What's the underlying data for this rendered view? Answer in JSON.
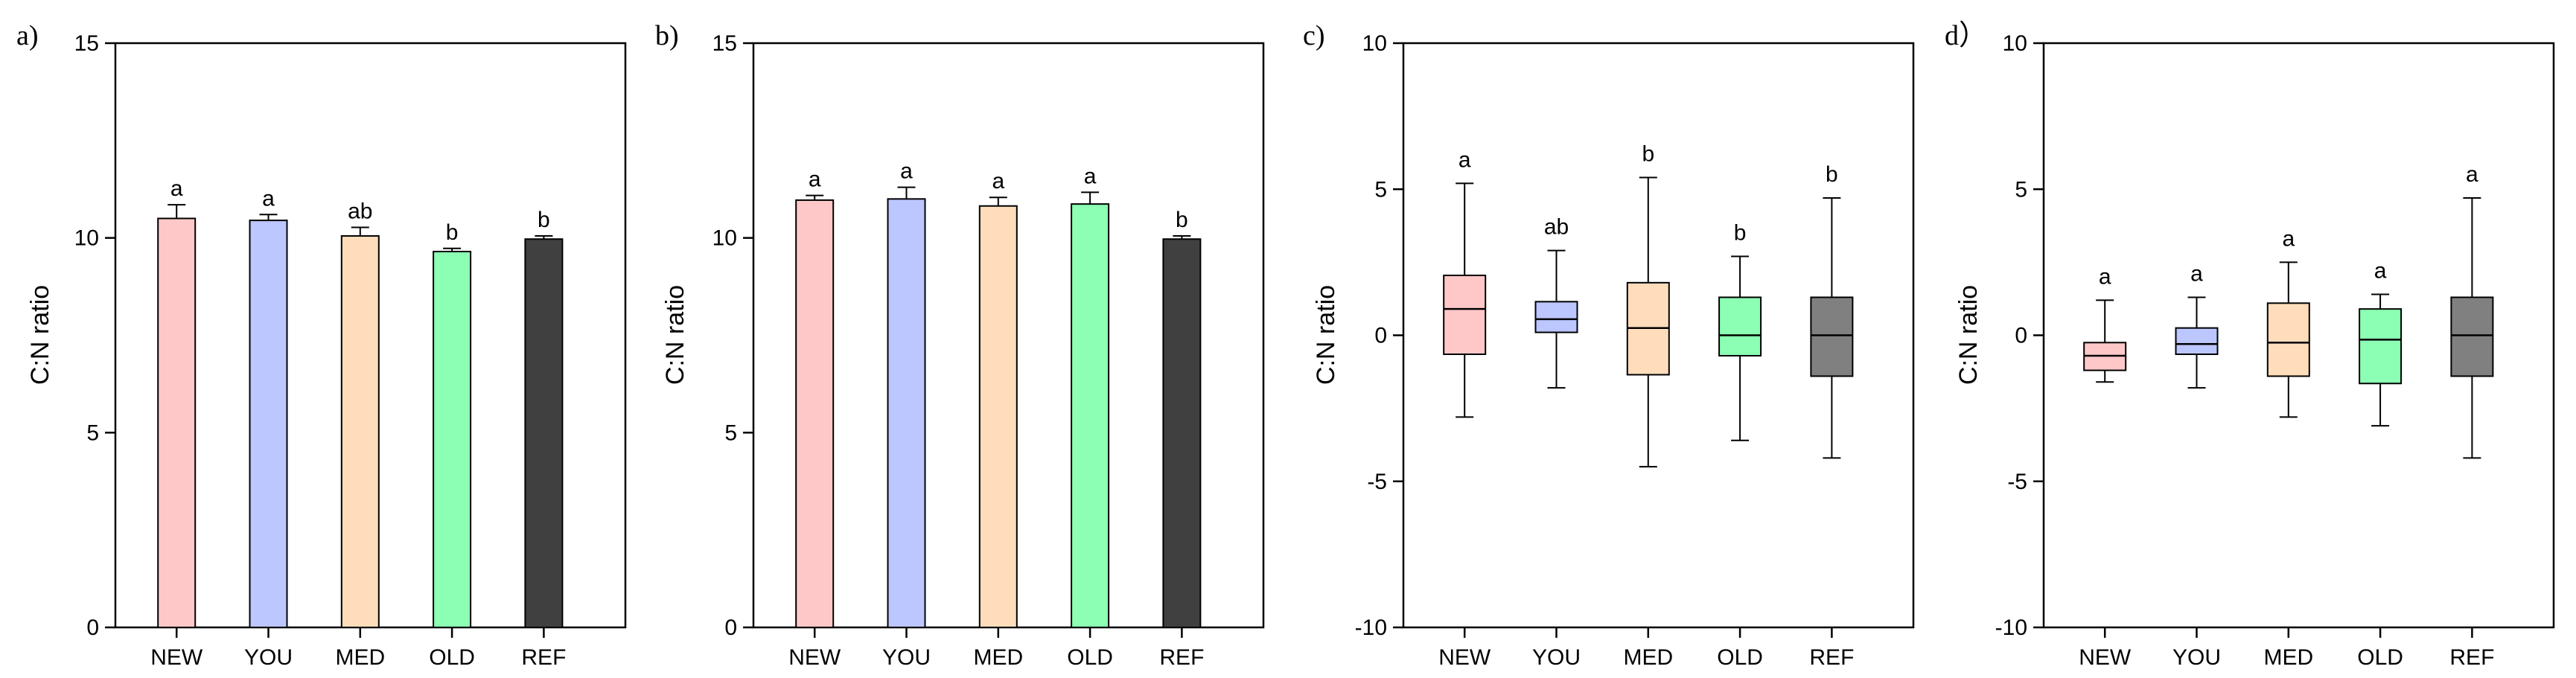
{
  "colors": {
    "NEW": "#FFC8C8",
    "YOU": "#BCC6FF",
    "MED": "#FFDDBB",
    "OLD": "#8CFFB4",
    "REF_bar": "#404040",
    "REF_box": "#808080"
  },
  "chart_data": [
    {
      "id": "a",
      "panel_label": "a)",
      "type": "bar",
      "ylabel": "C:N ratio",
      "ylim": [
        0,
        15
      ],
      "yticks": [
        0,
        5,
        10,
        15
      ],
      "categories": [
        "NEW",
        "YOU",
        "MED",
        "OLD",
        "REF"
      ],
      "values": [
        10.5,
        10.45,
        10.05,
        9.65,
        9.97
      ],
      "errors": [
        0.35,
        0.15,
        0.22,
        0.08,
        0.08
      ],
      "letters": [
        "a",
        "a",
        "ab",
        "b",
        "b"
      ]
    },
    {
      "id": "b",
      "panel_label": "b)",
      "type": "bar",
      "ylabel": "C:N ratio",
      "ylim": [
        0,
        15
      ],
      "yticks": [
        0,
        5,
        10,
        15
      ],
      "categories": [
        "NEW",
        "YOU",
        "MED",
        "OLD",
        "REF"
      ],
      "values": [
        10.97,
        11.0,
        10.82,
        10.87,
        9.97
      ],
      "errors": [
        0.12,
        0.3,
        0.22,
        0.3,
        0.08
      ],
      "letters": [
        "a",
        "a",
        "a",
        "a",
        "b"
      ]
    },
    {
      "id": "c",
      "panel_label": "c)",
      "type": "box",
      "ylabel": "C:N ratio",
      "ylim": [
        -10,
        10
      ],
      "yticks": [
        -10,
        -5,
        0,
        5,
        10
      ],
      "categories": [
        "NEW",
        "YOU",
        "MED",
        "OLD",
        "REF"
      ],
      "boxes": [
        {
          "min": -2.8,
          "q1": -0.65,
          "median": 0.9,
          "q3": 2.05,
          "max": 5.2
        },
        {
          "min": -1.8,
          "q1": 0.1,
          "median": 0.55,
          "q3": 1.15,
          "max": 2.9
        },
        {
          "min": -4.5,
          "q1": -1.35,
          "median": 0.25,
          "q3": 1.8,
          "max": 5.4
        },
        {
          "min": -3.6,
          "q1": -0.7,
          "median": 0.0,
          "q3": 1.3,
          "max": 2.7
        },
        {
          "min": -4.2,
          "q1": -1.4,
          "median": 0.0,
          "q3": 1.3,
          "max": 4.7
        }
      ],
      "letters": [
        "a",
        "ab",
        "b",
        "b",
        "b"
      ]
    },
    {
      "id": "d",
      "panel_label": "d）",
      "type": "box",
      "ylabel": "C:N ratio",
      "ylim": [
        -10,
        10
      ],
      "yticks": [
        -10,
        -5,
        0,
        5,
        10
      ],
      "categories": [
        "NEW",
        "YOU",
        "MED",
        "OLD",
        "REF"
      ],
      "boxes": [
        {
          "min": -1.6,
          "q1": -1.2,
          "median": -0.7,
          "q3": -0.25,
          "max": 1.2
        },
        {
          "min": -1.8,
          "q1": -0.65,
          "median": -0.3,
          "q3": 0.25,
          "max": 1.3
        },
        {
          "min": -2.8,
          "q1": -1.4,
          "median": -0.25,
          "q3": 1.1,
          "max": 2.5
        },
        {
          "min": -3.1,
          "q1": -1.65,
          "median": -0.15,
          "q3": 0.9,
          "max": 1.4
        },
        {
          "min": -4.2,
          "q1": -1.4,
          "median": 0.0,
          "q3": 1.3,
          "max": 4.7
        }
      ],
      "letters": [
        "a",
        "a",
        "a",
        "a",
        "a"
      ]
    }
  ]
}
